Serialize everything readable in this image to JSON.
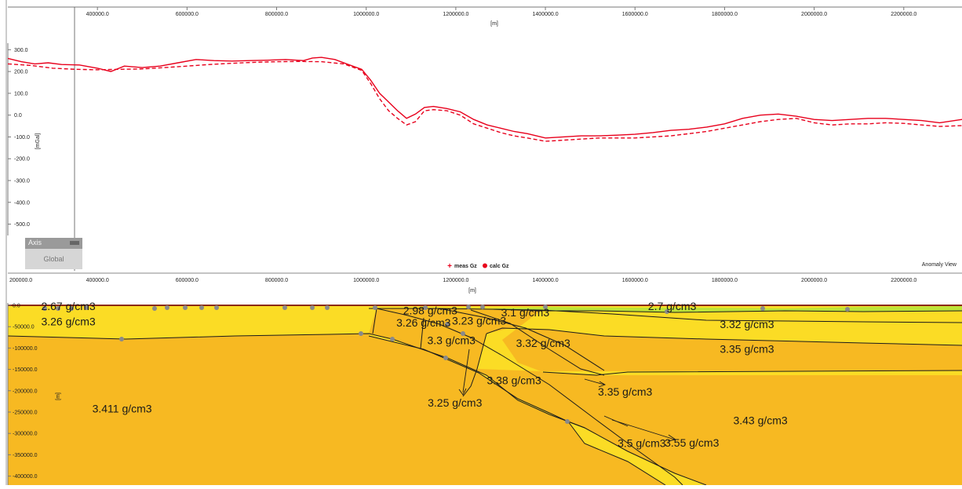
{
  "chart_data": [
    {
      "type": "line",
      "panel": "Anomaly View",
      "title": "",
      "xlabel": "[m]",
      "ylabel": "[mGal]",
      "xlim": [
        200000,
        2330000
      ],
      "ylim": [
        -570,
        330
      ],
      "x_ticks": [
        400000,
        600000,
        800000,
        1000000,
        1200000,
        1400000,
        1600000,
        1800000,
        2000000,
        2200000
      ],
      "x_tick_labels": [
        "400000.0",
        "600000.0",
        "800000.0",
        "1000000.0",
        "1200000.0",
        "1400000.0",
        "1600000.0",
        "1800000.0",
        "2000000.0",
        "2200000.0"
      ],
      "bottom_tick_labels": [
        "200000.0",
        "400000.0",
        "600000.0",
        "800000.0",
        "1000000.0",
        "1200000.0",
        "1400000.0",
        "1600000.0",
        "1800000.0",
        "2000000.0",
        "2200000.0"
      ],
      "y_ticks": [
        300,
        200,
        100,
        0,
        -100,
        -200,
        -300,
        -400,
        -500
      ],
      "y_tick_labels": [
        "300.0",
        "200.0",
        "100.0",
        "0.0",
        "-100.0",
        "-200.0",
        "-300.0",
        "-400.0",
        "-500.0"
      ],
      "legend": {
        "position": "bottom-center",
        "entries": [
          "meas Gz",
          "calc Gz"
        ]
      },
      "view_label": "Anomaly View",
      "series": [
        {
          "name": "meas Gz",
          "color": "#e8001c",
          "style": "solid",
          "x": [
            200000,
            230000,
            260000,
            290000,
            320000,
            360000,
            400000,
            430000,
            460000,
            500000,
            540000,
            580000,
            620000,
            660000,
            700000,
            740000,
            780000,
            820000,
            860000,
            880000,
            900000,
            930000,
            960000,
            990000,
            1010000,
            1030000,
            1050000,
            1070000,
            1090000,
            1110000,
            1130000,
            1150000,
            1180000,
            1210000,
            1240000,
            1270000,
            1300000,
            1330000,
            1360000,
            1400000,
            1440000,
            1480000,
            1520000,
            1560000,
            1600000,
            1640000,
            1680000,
            1720000,
            1760000,
            1800000,
            1840000,
            1880000,
            1920000,
            1960000,
            2000000,
            2040000,
            2080000,
            2120000,
            2160000,
            2200000,
            2240000,
            2280000,
            2330000
          ],
          "y": [
            260,
            245,
            235,
            240,
            232,
            230,
            215,
            200,
            225,
            218,
            225,
            240,
            255,
            250,
            248,
            250,
            252,
            255,
            250,
            262,
            265,
            255,
            232,
            210,
            160,
            100,
            60,
            20,
            -15,
            5,
            35,
            40,
            30,
            15,
            -20,
            -45,
            -60,
            -75,
            -85,
            -105,
            -100,
            -95,
            -95,
            -92,
            -88,
            -80,
            -70,
            -65,
            -55,
            -40,
            -15,
            0,
            5,
            -5,
            -20,
            -25,
            -20,
            -15,
            -15,
            -20,
            -25,
            -35,
            -20
          ]
        },
        {
          "name": "calc Gz",
          "color": "#e8001c",
          "style": "dashed",
          "x": [
            200000,
            250000,
            300000,
            350000,
            400000,
            450000,
            500000,
            550000,
            600000,
            650000,
            700000,
            750000,
            800000,
            850000,
            900000,
            950000,
            990000,
            1010000,
            1030000,
            1050000,
            1070000,
            1090000,
            1110000,
            1130000,
            1150000,
            1180000,
            1210000,
            1240000,
            1270000,
            1300000,
            1330000,
            1360000,
            1400000,
            1440000,
            1480000,
            1520000,
            1560000,
            1600000,
            1640000,
            1680000,
            1720000,
            1760000,
            1800000,
            1840000,
            1880000,
            1920000,
            1960000,
            2000000,
            2040000,
            2080000,
            2120000,
            2160000,
            2200000,
            2240000,
            2280000,
            2330000
          ],
          "y": [
            235,
            228,
            215,
            210,
            208,
            210,
            212,
            218,
            225,
            232,
            238,
            242,
            245,
            246,
            245,
            235,
            205,
            145,
            75,
            20,
            -15,
            -45,
            -30,
            20,
            25,
            20,
            0,
            -40,
            -60,
            -80,
            -95,
            -105,
            -120,
            -115,
            -110,
            -105,
            -105,
            -105,
            -100,
            -95,
            -85,
            -75,
            -60,
            -45,
            -30,
            -20,
            -15,
            -35,
            -45,
            -40,
            -40,
            -35,
            -38,
            -45,
            -52,
            -48
          ]
        }
      ]
    },
    {
      "type": "table",
      "panel": "Model cross-section",
      "title": "",
      "xlabel": "",
      "ylabel": "[m]",
      "xlim": [
        200000,
        2330000
      ],
      "ylim": [
        -410000,
        0
      ],
      "y_ticks": [
        0,
        -50000,
        -100000,
        -150000,
        -200000,
        -250000,
        -300000,
        -350000,
        -400000
      ],
      "y_tick_labels": [
        "0.0",
        "-50000.0",
        "-100000.0",
        "-150000.0",
        "-200000.0",
        "-250000.0",
        "-300000.0",
        "-350000.0",
        "-400000.0"
      ],
      "density_labels": [
        {
          "text": "2.67 g/cm3",
          "x": 335000,
          "y": -2000
        },
        {
          "text": "3.26 g/cm3",
          "x": 335000,
          "y": -38000
        },
        {
          "text": "3.411 g/cm3",
          "x": 455000,
          "y": -242000
        },
        {
          "text": "2.98 g/cm3",
          "x": 1143000,
          "y": -12000
        },
        {
          "text": "3.26 g/cm3",
          "x": 1128000,
          "y": -40000
        },
        {
          "text": "3.23 g/cm3",
          "x": 1252000,
          "y": -36000
        },
        {
          "text": "3.1 g/cm3",
          "x": 1355000,
          "y": -17000
        },
        {
          "text": "2.7 g/cm3",
          "x": 1683000,
          "y": -2000
        },
        {
          "text": "3.32 g/cm3",
          "x": 1850000,
          "y": -44000
        },
        {
          "text": "3.3 g/cm3",
          "x": 1190000,
          "y": -82000
        },
        {
          "text": "3.32 g/cm3",
          "x": 1395000,
          "y": -88000
        },
        {
          "text": "3.35 g/cm3",
          "x": 1850000,
          "y": -102000
        },
        {
          "text": "3.38 g/cm3",
          "x": 1330000,
          "y": -176000
        },
        {
          "text": "3.35 g/cm3",
          "x": 1578000,
          "y": -202000
        },
        {
          "text": "3.25 g/cm3",
          "x": 1198000,
          "y": -228000
        },
        {
          "text": "3.43 g/cm3",
          "x": 1880000,
          "y": -269000
        },
        {
          "text": "3.55 g/cm3",
          "x": 1727000,
          "y": -322000
        },
        {
          "text": "3.5 g/cm3",
          "x": 1615000,
          "y": -323000
        }
      ],
      "colors": {
        "mantle": "#f7b922",
        "crust": "#fbdc25",
        "sediment": "#bde238",
        "outline": "#1b1b1b",
        "vertex": "#8a8a8a"
      }
    }
  ],
  "axis_panel": {
    "header": "Axis",
    "body": "Global"
  }
}
